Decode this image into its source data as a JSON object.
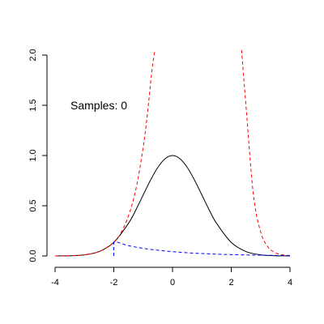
{
  "chart_data": {
    "type": "line",
    "title": "",
    "xlabel": "",
    "ylabel": "",
    "xlim": [
      -4,
      4
    ],
    "ylim": [
      0,
      2
    ],
    "grid": false,
    "x_ticks": [
      -4,
      -2,
      0,
      2,
      4
    ],
    "x_tick_labels": [
      "-4",
      "-2",
      "0",
      "2",
      "4"
    ],
    "y_ticks": [
      0,
      0.5,
      1,
      1.5,
      2
    ],
    "y_tick_labels": [
      "0.0",
      "0.5",
      "1.0",
      "1.5",
      "2.0"
    ],
    "annotation": "Samples: 0",
    "series": [
      {
        "style": "solid",
        "color": "#000000",
        "x": [
          -4,
          -3.5,
          -3,
          -2.5,
          -2,
          -1.5,
          -1.25,
          -1,
          -0.75,
          -0.5,
          -0.25,
          0,
          0.25,
          0.5,
          0.75,
          1,
          1.25,
          1.5,
          2,
          2.5,
          3,
          3.5,
          4
        ],
        "values": [
          0.0003,
          0.0022,
          0.011,
          0.044,
          0.135,
          0.325,
          0.458,
          0.607,
          0.755,
          0.882,
          0.969,
          1.0,
          0.969,
          0.882,
          0.755,
          0.607,
          0.458,
          0.325,
          0.135,
          0.044,
          0.011,
          0.0022,
          0.0003
        ]
      },
      {
        "style": "dashed",
        "color": "#ff0000",
        "x": [
          -4,
          -3.5,
          -3,
          -2.5,
          -2,
          -1.75,
          -1.5,
          -1.25,
          -1,
          -0.85,
          -0.7,
          -0.6,
          2.35,
          2.5,
          2.75,
          3,
          3.25,
          3.5,
          3.75,
          4
        ],
        "values": [
          0.0003,
          0.0022,
          0.011,
          0.044,
          0.135,
          0.235,
          0.4,
          0.66,
          1.08,
          1.43,
          1.85,
          2.05,
          2.05,
          1.5,
          0.62,
          0.24,
          0.09,
          0.033,
          0.011,
          0.004
        ]
      },
      {
        "style": "dashed",
        "color": "#0000ff",
        "x": [
          -4,
          -2,
          -2,
          -1.5,
          -1,
          -0.5,
          0,
          0.5,
          1,
          1.5,
          2,
          2.5,
          3,
          3.5,
          4
        ],
        "values": [
          0,
          0,
          0.135,
          0.102,
          0.076,
          0.057,
          0.043,
          0.032,
          0.024,
          0.018,
          0.0135,
          0.01,
          0.0076,
          0.0057,
          0.004
        ]
      }
    ]
  }
}
